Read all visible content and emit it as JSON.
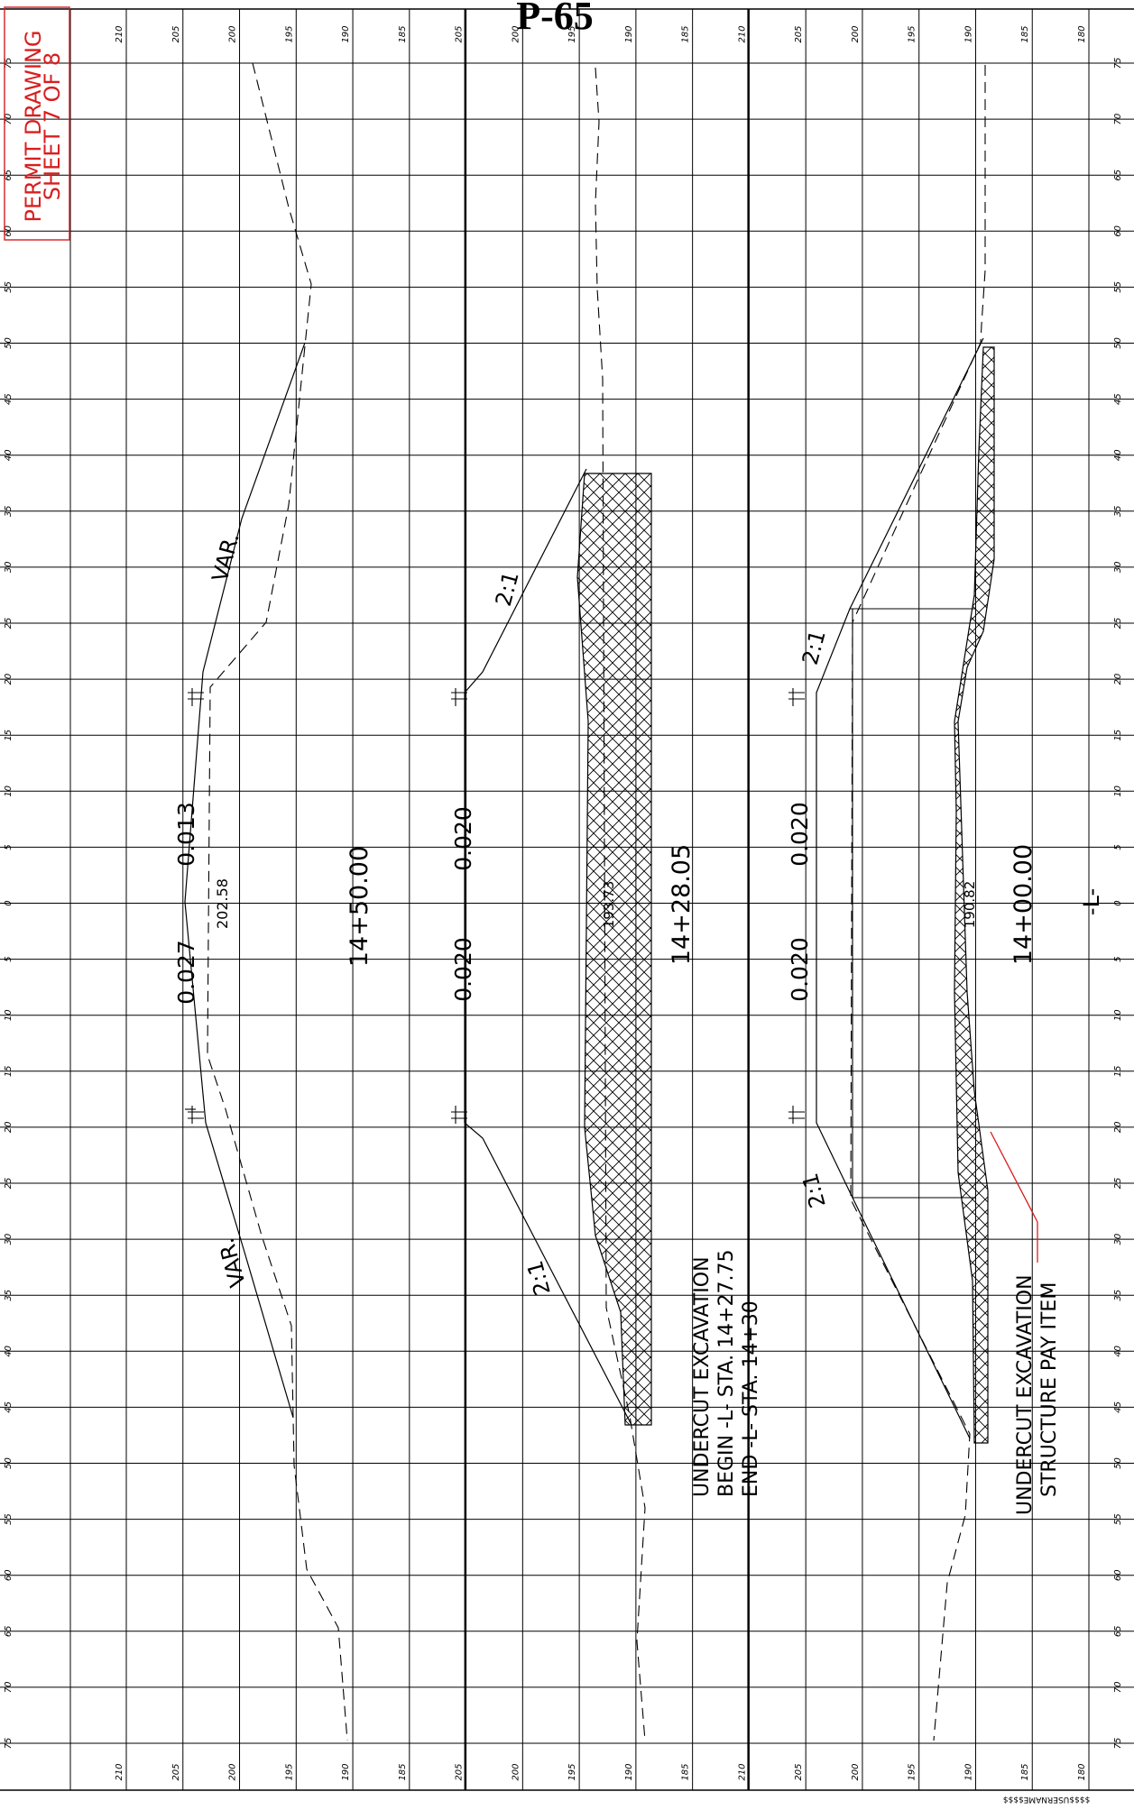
{
  "title": "P-65",
  "stamp": {
    "line1": "PERMIT DRAWING",
    "line2": "SHEET 7 OF 8"
  },
  "footer": "$$$$USERNAME$$$$",
  "offset_ticks": [
    "75",
    "70",
    "65",
    "60",
    "55",
    "50",
    "45",
    "40",
    "35",
    "30",
    "25",
    "20",
    "15",
    "10",
    "5",
    "0",
    "5",
    "10",
    "15",
    "20",
    "25",
    "30",
    "35",
    "40",
    "45",
    "50",
    "55",
    "60",
    "65",
    "70",
    "75"
  ],
  "elevation_ticks": [
    "210",
    "205",
    "200",
    "195",
    "190",
    "185",
    "205",
    "200",
    "195",
    "190",
    "185",
    "210",
    "205",
    "200",
    "195",
    "190",
    "185",
    "180"
  ],
  "centerline_label": "-L-",
  "sections": [
    {
      "station": "14+50.00",
      "slopes": {
        "left": "0.027",
        "right": "0.013"
      },
      "elevation": "202.58",
      "side_slopes": [
        "VAR.",
        "VAR."
      ]
    },
    {
      "station": "14+28.05",
      "slopes": {
        "left": "0.020",
        "right": "0.020"
      },
      "elevation": "193.73",
      "side_slopes": [
        "2:1",
        "2:1"
      ]
    },
    {
      "station": "14+00.00",
      "slopes": {
        "left": "0.020",
        "right": "0.020"
      },
      "elevation": "190.82",
      "side_slopes": [
        "2:1",
        "2:1"
      ]
    }
  ],
  "notes": {
    "undercut": [
      "UNDERCUT EXCAVATION",
      "BEGIN -L- STA. 14+27.75",
      "END -L- STA. 14+30"
    ],
    "structure": [
      "UNDERCUT EXCAVATION",
      "STRUCTURE PAY ITEM"
    ]
  },
  "colors": {
    "grid": "#000000",
    "annotation": "#d81e1e",
    "title": "#000000"
  }
}
